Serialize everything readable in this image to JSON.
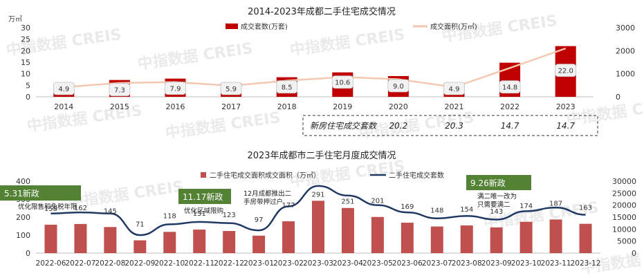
{
  "watermark": "中指数据 CREIS",
  "chart_data": [
    {
      "type": "bar",
      "title": "2014-2023年成都二手住宅成交情况",
      "left_unit": "万㎡",
      "categories": [
        "2014",
        "2015",
        "2016",
        "2017",
        "2018",
        "2019",
        "2020",
        "2021",
        "2022",
        "2023"
      ],
      "series": [
        {
          "name": "成交套数(万套)",
          "type": "bar",
          "axis": "left",
          "values": [
            4.9,
            7.3,
            7.9,
            5.9,
            8.5,
            10.6,
            9.0,
            4.9,
            14.8,
            22.0
          ],
          "labels": [
            "4.9",
            "7.3",
            "7.9",
            "5.9",
            "8.5",
            "10.6",
            "9.0",
            "4.9",
            "14.8",
            "22.0"
          ]
        },
        {
          "name": "成交面积(万㎡)",
          "type": "line",
          "axis": "right",
          "values": [
            420,
            600,
            640,
            480,
            700,
            860,
            760,
            420,
            1250,
            2100
          ]
        }
      ],
      "ylim_left": [
        0,
        30
      ],
      "yticks_left": [
        "0",
        "5",
        "10",
        "15",
        "20",
        "25",
        "30"
      ],
      "ylim_right": [
        0,
        3000
      ],
      "yticks_right": [
        "0",
        "1000",
        "2000",
        "3000"
      ],
      "colors": {
        "bar": "#c00000",
        "line": "#f4c7b0"
      },
      "new_home_table": {
        "label": "新房住宅成交套数",
        "values": [
          "20.2",
          "20.3",
          "14.7",
          "14.7"
        ]
      }
    },
    {
      "type": "bar",
      "title": "2023年成都市二手住宅月度成交情况",
      "categories": [
        "2022-06",
        "2022-07",
        "2022-08",
        "2022-09",
        "2022-10",
        "2022-11",
        "2022-12",
        "2023-01",
        "2023-02",
        "2023-03",
        "2023-04",
        "2023-05",
        "2023-06",
        "2023-07",
        "2023-08",
        "2023-09",
        "2023-10",
        "2023-11",
        "2023-12"
      ],
      "series": [
        {
          "name": "二手住宅成交面积成交面积（万㎡）",
          "type": "bar",
          "axis": "left",
          "values": [
            158,
            162,
            145,
            71,
            118,
            131,
            123,
            97,
            177,
            291,
            251,
            201,
            169,
            148,
            154,
            143,
            174,
            187,
            163
          ],
          "labels": [
            "158",
            "162",
            "145",
            "71",
            "118",
            "131",
            "123",
            "97",
            "177",
            "291",
            "251",
            "201",
            "169",
            "148",
            "154",
            "143",
            "174",
            "187",
            "163"
          ]
        },
        {
          "name": "二手住宅成交套数",
          "type": "line",
          "axis": "right",
          "values": [
            16500,
            17000,
            16500,
            7500,
            12000,
            13000,
            12500,
            9500,
            19500,
            28000,
            24000,
            20000,
            17000,
            14500,
            15500,
            14000,
            17500,
            19000,
            16000
          ]
        }
      ],
      "ylim_left": [
        0,
        400
      ],
      "yticks_left": [
        "0",
        "100",
        "200",
        "300",
        "400"
      ],
      "ylim_right": [
        0,
        30000
      ],
      "yticks_right": [
        "0",
        "5000",
        "10000",
        "15000",
        "20000",
        "25000",
        "30000"
      ],
      "colors": {
        "bar": "#c0504d",
        "line": "#1f3864",
        "policy_box": "#548235"
      },
      "annotations": [
        {
          "box": "5.31新政",
          "text": [
            "优化限售和免税年限"
          ]
        },
        {
          "box": "11.17新政",
          "text": [
            "优化区域限购"
          ]
        },
        {
          "box": "",
          "text": [
            "12月成都推出二",
            "手房带押过户"
          ]
        },
        {
          "box": "9.26新政",
          "text": [
            "满二唯一改为",
            "只需要满二"
          ]
        }
      ]
    }
  ]
}
